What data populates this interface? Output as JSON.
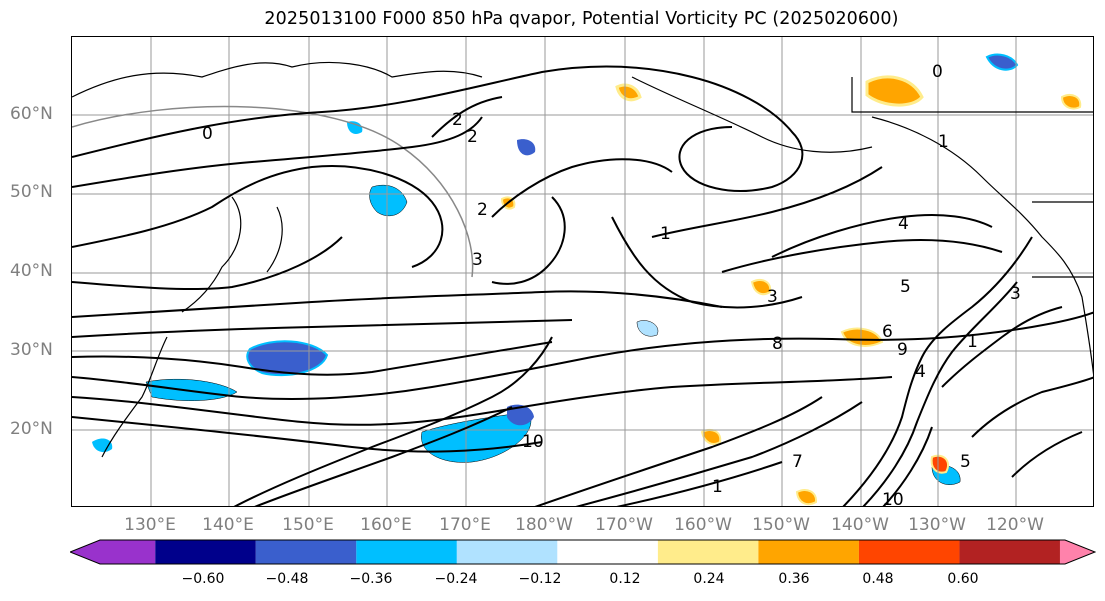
{
  "title": "2025013100 F000 850 hPa qvapor, Potential Vorticity PC (2025020600)",
  "map": {
    "lat_labels": [
      "60°N",
      "50°N",
      "40°N",
      "30°N",
      "20°N"
    ],
    "lon_labels": [
      "130°E",
      "140°E",
      "150°E",
      "160°E",
      "170°E",
      "180°W",
      "170°W",
      "160°W",
      "150°W",
      "140°W",
      "130°W",
      "120°W"
    ],
    "contour_labels": [
      "0",
      "2",
      "2",
      "1",
      "2",
      "3",
      "1",
      "1",
      "3",
      "4",
      "5",
      "6",
      "8",
      "9",
      "4",
      "5",
      "10",
      "10",
      "7",
      "1",
      "0",
      "3"
    ],
    "land_color": "#ffffff",
    "contour_color": "#000000",
    "grid_color": "#888888"
  },
  "colorbar": {
    "colors": [
      "#9932cc",
      "#00008b",
      "#3a5fcd",
      "#00bfff",
      "#b0e2ff",
      "#ffffff",
      "#ffec8b",
      "#ffa500",
      "#ff4500",
      "#b22222",
      "#ff82ab"
    ],
    "ticks": [
      "−0.60",
      "−0.48",
      "−0.36",
      "−0.24",
      "−0.12",
      "0.12",
      "0.24",
      "0.36",
      "0.48",
      "0.60"
    ]
  }
}
